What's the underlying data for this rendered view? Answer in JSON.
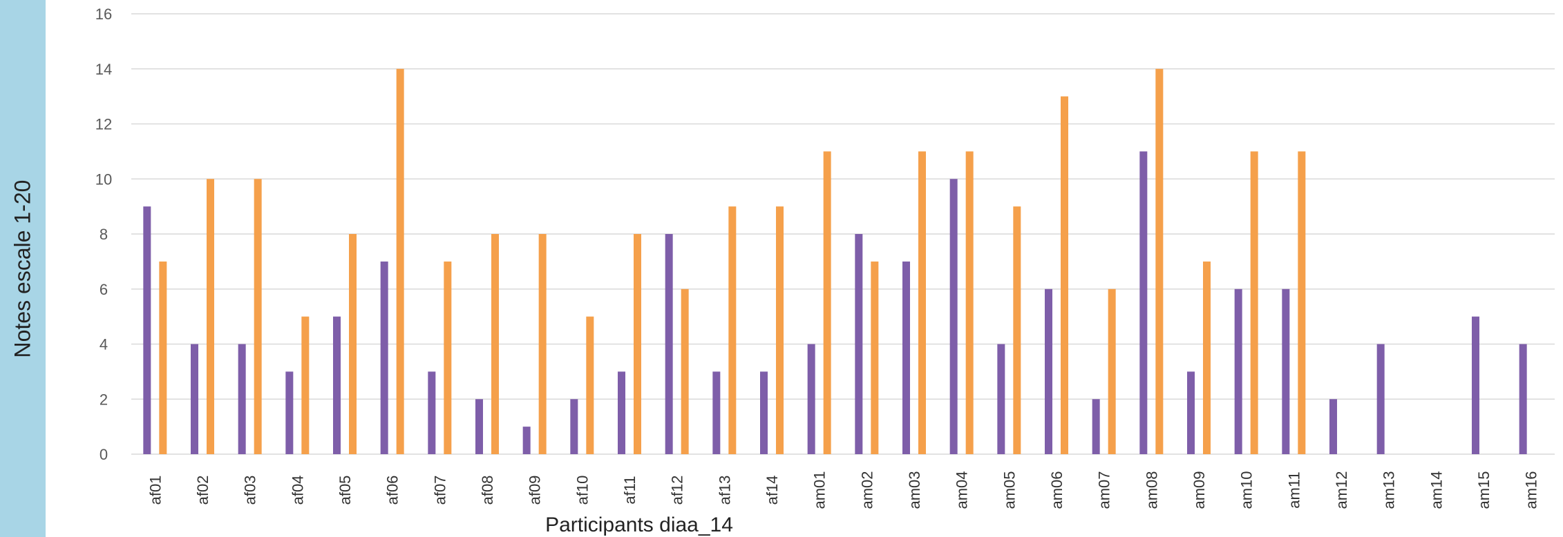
{
  "chart_data": {
    "type": "bar",
    "title": "",
    "xlabel": "Participants diaa_14",
    "ylabel": "Notes escale 1-20",
    "ylim": [
      0,
      16
    ],
    "yticks": [
      0,
      2,
      4,
      6,
      8,
      10,
      12,
      14,
      16
    ],
    "grid": true,
    "categories": [
      "af01",
      "af02",
      "af03",
      "af04",
      "af05",
      "af06",
      "af07",
      "af08",
      "af09",
      "af10",
      "af11",
      "af12",
      "af13",
      "af14",
      "am01",
      "am02",
      "am03",
      "am04",
      "am05",
      "am06",
      "am07",
      "am08",
      "am09",
      "am10",
      "am11",
      "am12",
      "am13",
      "am14",
      "am15",
      "am16"
    ],
    "series": [
      {
        "color": "#7e5ea9",
        "values": [
          9,
          4,
          4,
          3,
          5,
          7,
          3,
          2,
          1,
          2,
          3,
          8,
          3,
          3,
          4,
          8,
          7,
          10,
          4,
          6,
          2,
          11,
          3,
          6,
          6,
          2,
          4,
          null,
          5,
          4
        ]
      },
      {
        "color": "#f5a04b",
        "values": [
          7,
          10,
          10,
          5,
          8,
          14,
          7,
          8,
          8,
          5,
          8,
          6,
          9,
          9,
          11,
          7,
          11,
          11,
          9,
          13,
          6,
          14,
          7,
          11,
          11,
          null,
          null,
          null,
          null,
          null
        ]
      }
    ]
  },
  "colors": {
    "sidebar": "#a8d5e6",
    "grid": "#d9d9d9",
    "tick_text": "#595959"
  }
}
